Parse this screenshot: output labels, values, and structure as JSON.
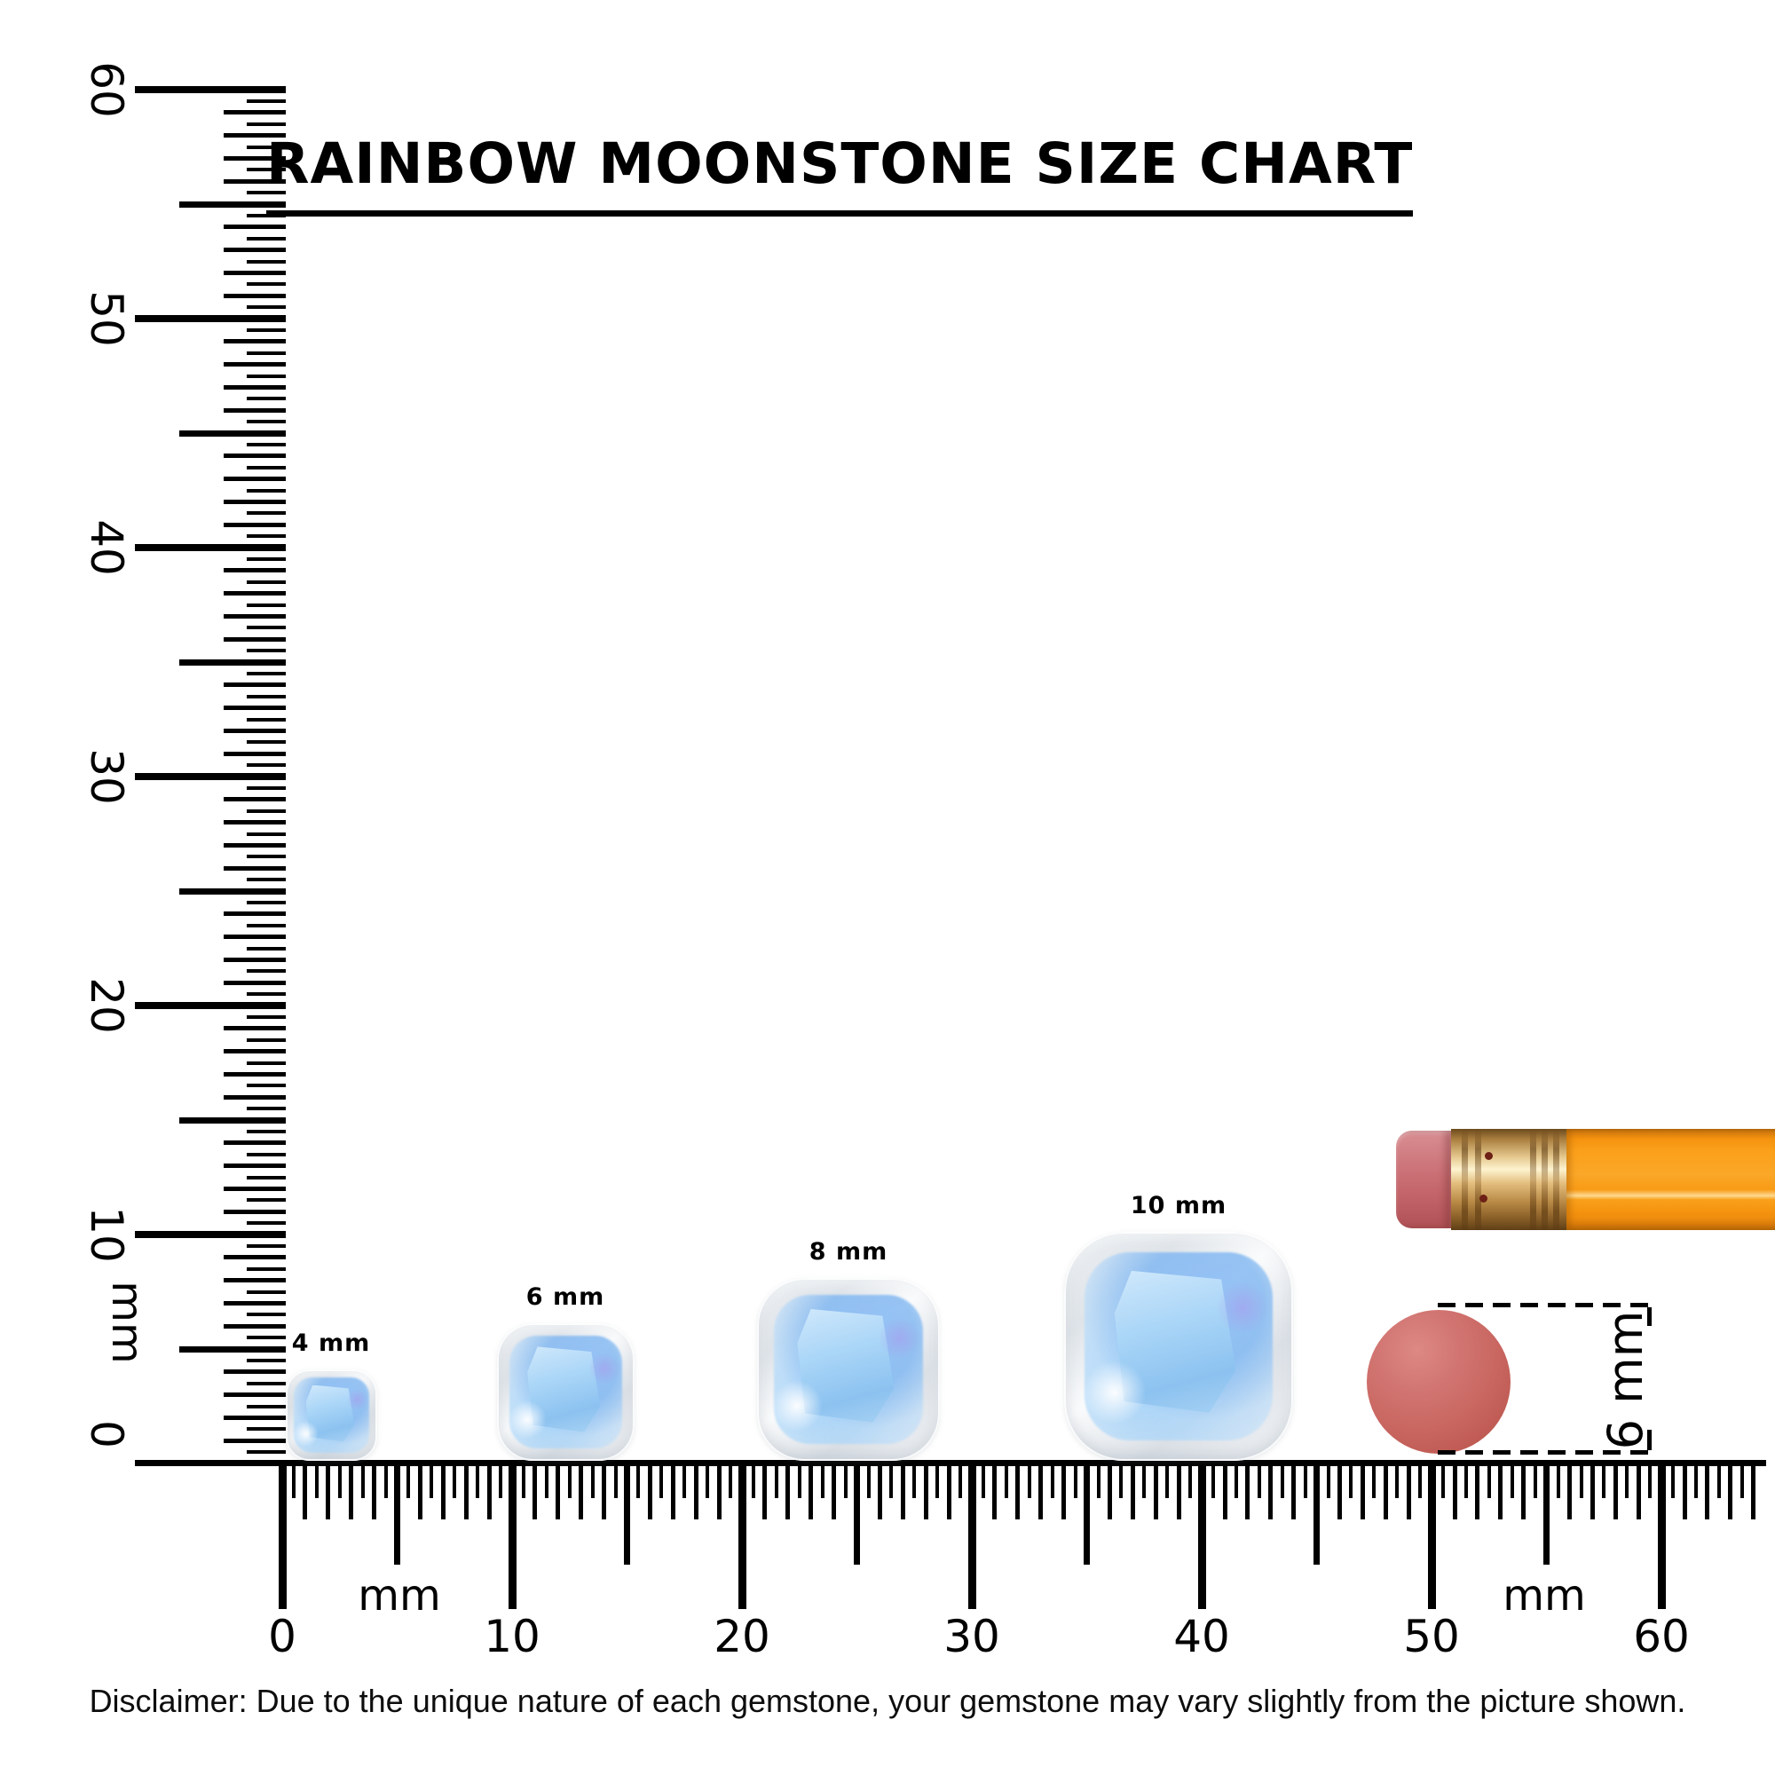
{
  "title": "RAINBOW MOONSTONE SIZE CHART",
  "rulers": {
    "vertical": {
      "unit": "mm",
      "tick_labels": [
        "0",
        "10",
        "20",
        "30",
        "40",
        "50",
        "60"
      ],
      "range_mm": [
        0,
        60
      ],
      "minor_step_mm": 0.5
    },
    "horizontal": {
      "unit_left": "mm",
      "unit_right": "mm",
      "tick_labels": [
        "0",
        "10",
        "20",
        "30",
        "40",
        "50",
        "60"
      ],
      "range_mm": [
        0,
        60
      ],
      "minor_step_mm": 0.5
    }
  },
  "gems": [
    {
      "label": "4 mm",
      "size_mm": 4
    },
    {
      "label": "6 mm",
      "size_mm": 6
    },
    {
      "label": "8 mm",
      "size_mm": 8
    },
    {
      "label": "10 mm",
      "size_mm": 10
    }
  ],
  "eraser_dimension": {
    "label": "6 mm",
    "size_mm": 6
  },
  "disclaimer": "Disclaimer: Due to the unique nature of each gemstone, your gemstone may vary slightly from the picture shown.",
  "colors": {
    "background": "#ffffff",
    "ink": "#000000",
    "gem_blue": "#8cc2f0",
    "gem_frost": "#e8ecf0",
    "pencil_body": "#f9a01a",
    "pencil_ferrule": "#e3bd7d",
    "pencil_eraser": "#c96d72",
    "eraser_dot": "#c96660"
  }
}
